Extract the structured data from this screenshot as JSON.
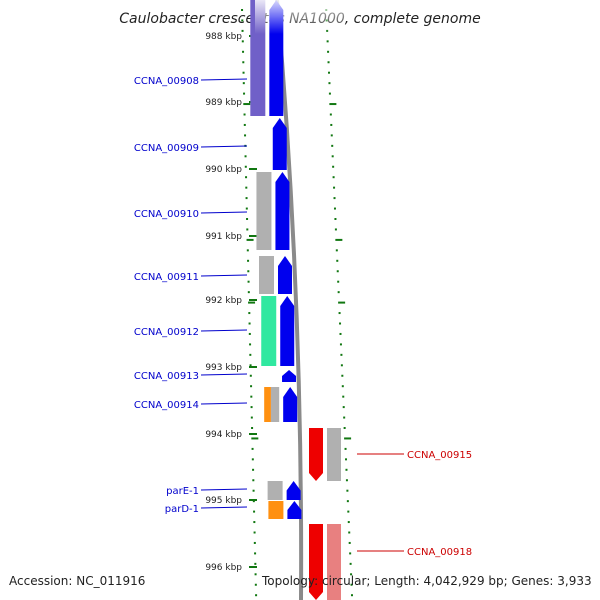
{
  "title": "Caulobacter crescentus NA1000, complete genome",
  "accession": "Accession: NC_011916",
  "summary": "Topology: circular; Length: 4,042,929 bp; Genes: 3,933",
  "colors": {
    "cds_forward": "#0000ee",
    "cds_reverse": "#ee0000",
    "cog_grey": "#b0b0b0",
    "cog_purple": "#7060c8",
    "cog_green": "#30e8a0",
    "cog_orange": "#ff9010",
    "cog_light_red": "#e88080",
    "tick": "#117711",
    "label_forward": "#0000cc",
    "label_reverse": "#cc0000"
  },
  "scale": {
    "unit": "kbp",
    "labels": [
      "988 kbp",
      "989 kbp",
      "990 kbp",
      "991 kbp",
      "992 kbp",
      "993 kbp",
      "994 kbp",
      "995 kbp",
      "996 kbp"
    ]
  },
  "genes_forward": [
    {
      "name": "CCNA_00908",
      "cog": "purple"
    },
    {
      "name": "CCNA_00909",
      "cog": "none"
    },
    {
      "name": "CCNA_00910",
      "cog": "grey"
    },
    {
      "name": "CCNA_00911",
      "cog": "grey"
    },
    {
      "name": "CCNA_00912",
      "cog": "green"
    },
    {
      "name": "CCNA_00913",
      "cog": "none"
    },
    {
      "name": "CCNA_00914",
      "cog": "orange-grey"
    },
    {
      "name": "parE-1",
      "cog": "grey"
    },
    {
      "name": "parD-1",
      "cog": "orange"
    }
  ],
  "genes_reverse": [
    {
      "name": "CCNA_00915",
      "cog": "grey"
    },
    {
      "name": "CCNA_00918",
      "cog": "light-red"
    }
  ]
}
